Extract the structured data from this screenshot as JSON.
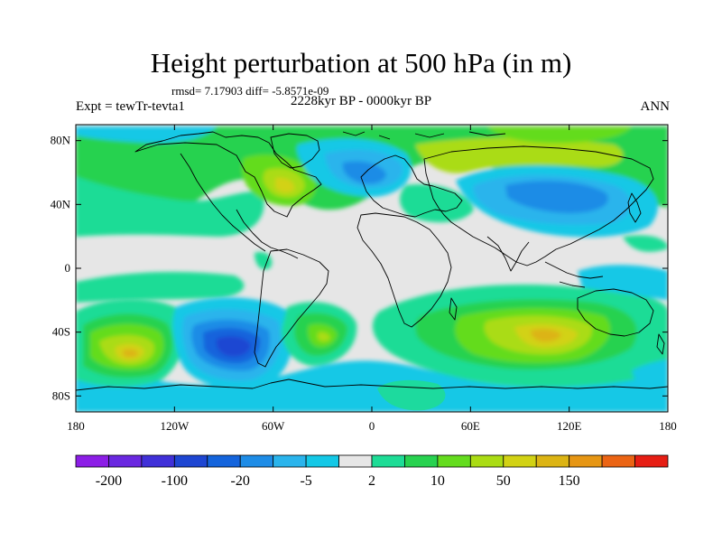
{
  "title": "Height perturbation at 500 hPa (in m)",
  "stats": "rmsd= 7.17903 diff= -5.8571e-09",
  "experiment": "Expt = tewTr-tevta1",
  "period": "2228kyr BP - 0000kyr BP",
  "season": "ANN",
  "lat_labels": [
    "80N",
    "40N",
    "0",
    "40S",
    "80S"
  ],
  "lon_labels": [
    "180",
    "120W",
    "60W",
    "0",
    "60E",
    "120E",
    "180"
  ],
  "colorbar": {
    "colors": [
      "#8c1ee6",
      "#6a28e0",
      "#4030d8",
      "#1e46d2",
      "#1464dc",
      "#1e8ce6",
      "#2ab4ec",
      "#14c8e6",
      "#e6e6e6",
      "#1edc96",
      "#28d250",
      "#64dc1e",
      "#aadc14",
      "#d2d214",
      "#dcb414",
      "#e69614",
      "#eb6414",
      "#e61e14"
    ],
    "labels": [
      "-200",
      "-100",
      "-20",
      "-5",
      "2",
      "10",
      "50",
      "150"
    ]
  },
  "palette": {
    "deep_blue": "#1e46d2",
    "blue": "#1464dc",
    "mid_blue": "#1e8ce6",
    "light_blue": "#2ab4ec",
    "cyan": "#14c8e6",
    "neutral": "#e6e6e6",
    "teal_green": "#1edc96",
    "green": "#28d250",
    "lime": "#64dc1e",
    "yellow_green": "#aadc14",
    "olive_yellow": "#d2d214",
    "orange_yellow": "#dcb414"
  }
}
